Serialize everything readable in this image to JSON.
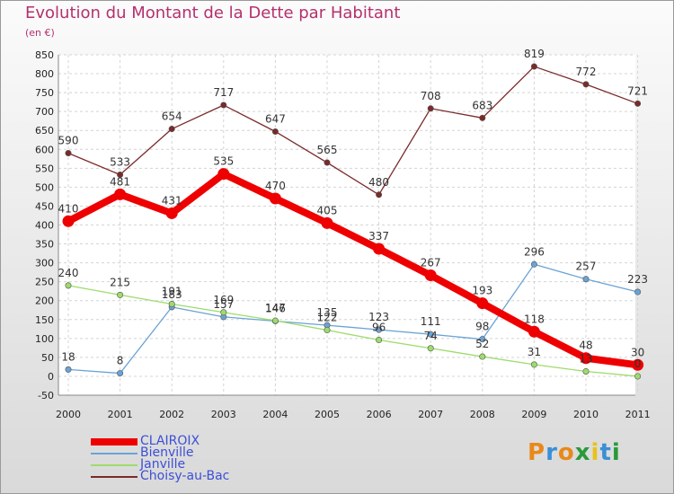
{
  "title": "Evolution du Montant de la Dette par Habitant",
  "unit": "(en €)",
  "logo": "Proxiti",
  "chart_data": {
    "type": "line",
    "x": [
      "2000",
      "2001",
      "2002",
      "2003",
      "2004",
      "2005",
      "2006",
      "2007",
      "2008",
      "2009",
      "2010",
      "2011"
    ],
    "ylim": [
      -50,
      850
    ],
    "yticks": [
      -50,
      0,
      50,
      100,
      150,
      200,
      250,
      300,
      350,
      400,
      450,
      500,
      550,
      600,
      650,
      700,
      750,
      800,
      850
    ],
    "grid": true,
    "legend_position": "bottom-left",
    "series": [
      {
        "name": "CLAIROIX",
        "color": "#ee0000",
        "values": [
          410,
          481,
          431,
          535,
          470,
          405,
          337,
          267,
          193,
          118,
          48,
          30
        ],
        "labels": true
      },
      {
        "name": "Bienville",
        "color": "#6aa3d6",
        "values": [
          18,
          8,
          183,
          157,
          146,
          135,
          123,
          111,
          98,
          296,
          257,
          223
        ],
        "labels": true
      },
      {
        "name": "Janville",
        "color": "#9ddc6a",
        "values": [
          240,
          215,
          191,
          169,
          147,
          122,
          96,
          74,
          52,
          31,
          13,
          0
        ],
        "labels": true
      },
      {
        "name": "Choisy-au-Bac",
        "color": "#7a2a2a",
        "values": [
          590,
          533,
          654,
          717,
          647,
          565,
          480,
          708,
          683,
          819,
          772,
          721
        ],
        "labels": true
      }
    ]
  }
}
